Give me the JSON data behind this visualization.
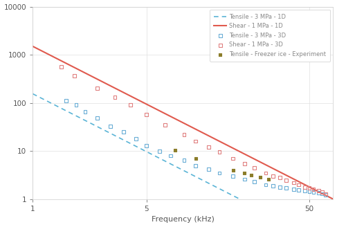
{
  "title": "",
  "xlabel": "Frequency (kHz)",
  "ylabel": "",
  "xlim": [
    1,
    70
  ],
  "ylim": [
    1,
    10000
  ],
  "tensile_1D_color": "#5ab4d6",
  "shear_1D_color": "#e05a4e",
  "tensile_3D_color": "#6baed6",
  "shear_3D_color": "#e08080",
  "exp_color": "#8b7d2a",
  "tensile_1D_label": "Tensile - 3 MPa - 1D",
  "shear_1D_label": "Shear - 1 MPa - 1D",
  "tensile_3D_label": "Tensile - 3 MPa - 3D",
  "shear_3D_label": "Shear - 1 MPa - 3D",
  "exp_label": "Tensile - Freezer ice - Experiment",
  "tensile_1D_y_at_1": 155,
  "tensile_1D_slope": -1.72,
  "shear_1D_y_at_1": 1500,
  "shear_1D_slope": -1.72,
  "tensile_3D_x": [
    1.6,
    1.85,
    2.1,
    2.5,
    3.0,
    3.6,
    4.3,
    5.0,
    6.0,
    7.0,
    8.5,
    10,
    12,
    14,
    17,
    20,
    23,
    27,
    30,
    33,
    36,
    40,
    43,
    47,
    50,
    53,
    57,
    60,
    63
  ],
  "tensile_3D_y": [
    110,
    90,
    65,
    48,
    33,
    25,
    18,
    13,
    10,
    8,
    6.5,
    5.0,
    4.2,
    3.5,
    3.0,
    2.6,
    2.3,
    2.0,
    1.9,
    1.8,
    1.7,
    1.6,
    1.55,
    1.5,
    1.45,
    1.4,
    1.35,
    1.3,
    1.25
  ],
  "shear_3D_x": [
    1.5,
    1.8,
    2.5,
    3.2,
    4.0,
    5.0,
    6.5,
    8.5,
    10,
    12,
    14,
    17,
    20,
    23,
    27,
    30,
    33,
    36,
    40,
    43,
    47,
    50,
    53,
    57,
    60,
    63
  ],
  "shear_3D_y": [
    560,
    370,
    200,
    130,
    90,
    58,
    35,
    22,
    16,
    12,
    9.5,
    7.0,
    5.5,
    4.5,
    3.5,
    3.0,
    2.8,
    2.5,
    2.2,
    2.0,
    1.8,
    1.7,
    1.6,
    1.5,
    1.4,
    1.3
  ],
  "exp_x": [
    7.5,
    10,
    17,
    20,
    22,
    25,
    28
  ],
  "exp_y": [
    10.5,
    7.0,
    4.0,
    3.5,
    3.2,
    2.9,
    2.6
  ],
  "background_color": "#ffffff",
  "grid_color": "#e0e0e0"
}
